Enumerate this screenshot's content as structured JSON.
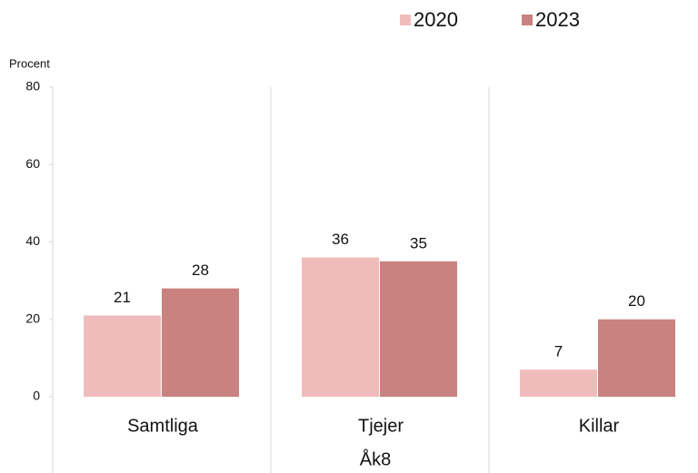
{
  "chart_data": {
    "type": "bar",
    "y_label": "Procent",
    "x_label": "Åk8",
    "categories": [
      "Samtliga",
      "Tjejer",
      "Killar"
    ],
    "series": [
      {
        "name": "2020",
        "color": "#f0bcbb",
        "values": [
          21,
          36,
          7
        ]
      },
      {
        "name": "2023",
        "color": "#c9827f",
        "values": [
          28,
          35,
          20
        ]
      }
    ],
    "ylim": [
      0,
      80
    ],
    "yticks": [
      0,
      20,
      40,
      60,
      80
    ],
    "grid": false,
    "legend": "top-right"
  }
}
